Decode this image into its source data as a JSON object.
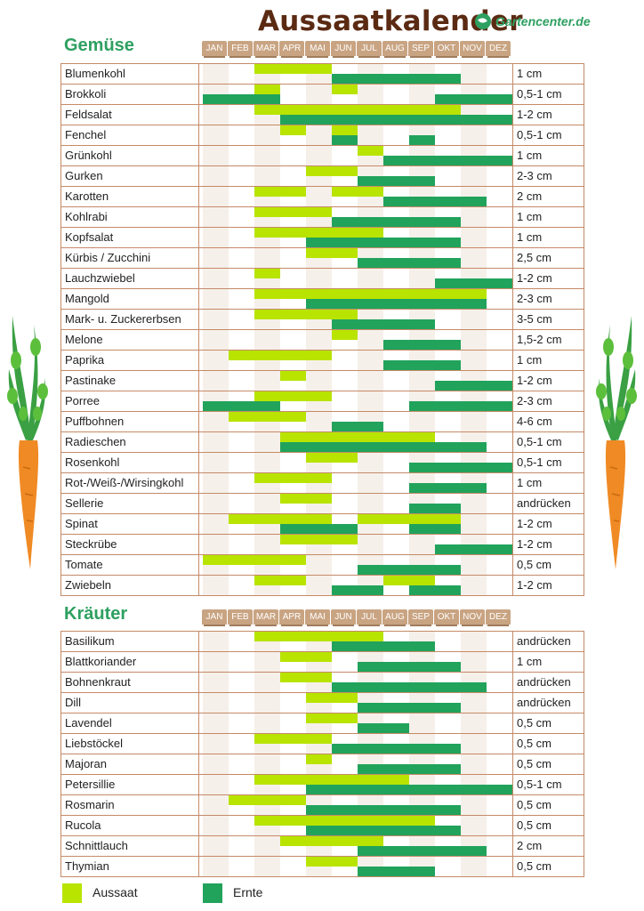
{
  "title": "Aussaatkalender",
  "brand": "Gartencenter.de",
  "months": [
    "JAN",
    "FEB",
    "MAR",
    "APR",
    "MAI",
    "JUN",
    "JUL",
    "AUG",
    "SEP",
    "OKT",
    "NOV",
    "DEZ"
  ],
  "colors": {
    "sow": "#b8e400",
    "harvest": "#21a35c",
    "heading": "#2ea061",
    "title": "#5b2a12"
  },
  "sections": [
    {
      "title": "Gemüse",
      "rows": [
        {
          "name": "Blumenkohl",
          "depth": "1 cm",
          "sow": [
            [
              3,
              5
            ]
          ],
          "harvest": [
            [
              6,
              10
            ]
          ]
        },
        {
          "name": "Brokkoli",
          "depth": "0,5-1 cm",
          "sow": [
            [
              3,
              3
            ],
            [
              6,
              6
            ]
          ],
          "harvest": [
            [
              1,
              3
            ],
            [
              10,
              12
            ]
          ]
        },
        {
          "name": "Feldsalat",
          "depth": "1-2 cm",
          "sow": [
            [
              3,
              10
            ]
          ],
          "harvest": [
            [
              4,
              12
            ]
          ]
        },
        {
          "name": "Fenchel",
          "depth": "0,5-1 cm",
          "sow": [
            [
              4,
              4
            ],
            [
              6,
              6
            ]
          ],
          "harvest": [
            [
              6,
              6
            ],
            [
              9,
              9
            ]
          ]
        },
        {
          "name": "Grünkohl",
          "depth": "1 cm",
          "sow": [
            [
              7,
              7
            ]
          ],
          "harvest": [
            [
              8,
              12
            ]
          ]
        },
        {
          "name": "Gurken",
          "depth": "2-3 cm",
          "sow": [
            [
              5,
              6
            ]
          ],
          "harvest": [
            [
              7,
              9
            ]
          ]
        },
        {
          "name": "Karotten",
          "depth": "2 cm",
          "sow": [
            [
              3,
              4
            ],
            [
              6,
              7
            ]
          ],
          "harvest": [
            [
              8,
              11
            ]
          ]
        },
        {
          "name": "Kohlrabi",
          "depth": "1 cm",
          "sow": [
            [
              3,
              5
            ]
          ],
          "harvest": [
            [
              6,
              10
            ]
          ]
        },
        {
          "name": "Kopfsalat",
          "depth": "1 cm",
          "sow": [
            [
              3,
              7
            ]
          ],
          "harvest": [
            [
              5,
              10
            ]
          ]
        },
        {
          "name": "Kürbis / Zucchini",
          "depth": "2,5 cm",
          "sow": [
            [
              5,
              6
            ]
          ],
          "harvest": [
            [
              7,
              10
            ]
          ]
        },
        {
          "name": "Lauchzwiebel",
          "depth": "1-2 cm",
          "sow": [
            [
              3,
              3
            ]
          ],
          "harvest": [
            [
              10,
              12
            ]
          ]
        },
        {
          "name": "Mangold",
          "depth": "2-3 cm",
          "sow": [
            [
              3,
              11
            ]
          ],
          "harvest": [
            [
              5,
              11
            ]
          ]
        },
        {
          "name": "Mark- u. Zuckererbsen",
          "depth": "3-5 cm",
          "sow": [
            [
              3,
              6
            ]
          ],
          "harvest": [
            [
              6,
              9
            ]
          ]
        },
        {
          "name": "Melone",
          "depth": "1,5-2 cm",
          "sow": [
            [
              6,
              6
            ]
          ],
          "harvest": [
            [
              8,
              10
            ]
          ]
        },
        {
          "name": "Paprika",
          "depth": "1 cm",
          "sow": [
            [
              2,
              5
            ]
          ],
          "harvest": [
            [
              8,
              10
            ]
          ]
        },
        {
          "name": "Pastinake",
          "depth": "1-2 cm",
          "sow": [
            [
              4,
              4
            ]
          ],
          "harvest": [
            [
              10,
              12
            ]
          ]
        },
        {
          "name": "Porree",
          "depth": "2-3 cm",
          "sow": [
            [
              3,
              5
            ]
          ],
          "harvest": [
            [
              1,
              3
            ],
            [
              9,
              12
            ]
          ]
        },
        {
          "name": "Puffbohnen",
          "depth": "4-6 cm",
          "sow": [
            [
              2,
              4
            ]
          ],
          "harvest": [
            [
              6,
              7
            ]
          ]
        },
        {
          "name": "Radieschen",
          "depth": "0,5-1 cm",
          "sow": [
            [
              4,
              9
            ]
          ],
          "harvest": [
            [
              4,
              11
            ]
          ]
        },
        {
          "name": "Rosenkohl",
          "depth": "0,5-1 cm",
          "sow": [
            [
              5,
              6
            ]
          ],
          "harvest": [
            [
              9,
              12
            ]
          ]
        },
        {
          "name": "Rot-/Weiß-/Wirsingkohl",
          "depth": "1 cm",
          "sow": [
            [
              3,
              5
            ]
          ],
          "harvest": [
            [
              9,
              11
            ]
          ]
        },
        {
          "name": "Sellerie",
          "depth": "andrücken",
          "sow": [
            [
              4,
              5
            ]
          ],
          "harvest": [
            [
              9,
              10
            ]
          ]
        },
        {
          "name": "Spinat",
          "depth": "1-2 cm",
          "sow": [
            [
              2,
              5
            ],
            [
              7,
              10
            ]
          ],
          "harvest": [
            [
              4,
              6
            ],
            [
              9,
              10
            ]
          ]
        },
        {
          "name": "Steckrübe",
          "depth": "1-2 cm",
          "sow": [
            [
              4,
              6
            ]
          ],
          "harvest": [
            [
              10,
              12
            ]
          ]
        },
        {
          "name": "Tomate",
          "depth": "0,5 cm",
          "sow": [
            [
              1,
              4
            ]
          ],
          "harvest": [
            [
              7,
              10
            ]
          ]
        },
        {
          "name": "Zwiebeln",
          "depth": "1-2 cm",
          "sow": [
            [
              3,
              4
            ],
            [
              8,
              9
            ]
          ],
          "harvest": [
            [
              6,
              7
            ],
            [
              9,
              10
            ]
          ]
        }
      ]
    },
    {
      "title": "Kräuter",
      "rows": [
        {
          "name": "Basilikum",
          "depth": "andrücken",
          "sow": [
            [
              3,
              7
            ]
          ],
          "harvest": [
            [
              6,
              9
            ]
          ]
        },
        {
          "name": "Blattkoriander",
          "depth": "1 cm",
          "sow": [
            [
              4,
              5
            ]
          ],
          "harvest": [
            [
              7,
              10
            ]
          ]
        },
        {
          "name": "Bohnenkraut",
          "depth": "andrücken",
          "sow": [
            [
              4,
              5
            ]
          ],
          "harvest": [
            [
              6,
              11
            ]
          ]
        },
        {
          "name": "Dill",
          "depth": "andrücken",
          "sow": [
            [
              5,
              6
            ]
          ],
          "harvest": [
            [
              7,
              10
            ]
          ]
        },
        {
          "name": "Lavendel",
          "depth": "0,5 cm",
          "sow": [
            [
              5,
              6
            ]
          ],
          "harvest": [
            [
              7,
              8
            ]
          ]
        },
        {
          "name": "Liebstöckel",
          "depth": "0,5 cm",
          "sow": [
            [
              3,
              5
            ]
          ],
          "harvest": [
            [
              6,
              10
            ]
          ]
        },
        {
          "name": "Majoran",
          "depth": "0,5 cm",
          "sow": [
            [
              5,
              5
            ]
          ],
          "harvest": [
            [
              7,
              10
            ]
          ]
        },
        {
          "name": "Petersillie",
          "depth": "0,5-1 cm",
          "sow": [
            [
              3,
              8
            ]
          ],
          "harvest": [
            [
              5,
              12
            ]
          ]
        },
        {
          "name": "Rosmarin",
          "depth": "0,5 cm",
          "sow": [
            [
              2,
              4
            ]
          ],
          "harvest": [
            [
              5,
              10
            ]
          ]
        },
        {
          "name": "Rucola",
          "depth": "0,5 cm",
          "sow": [
            [
              3,
              9
            ]
          ],
          "harvest": [
            [
              5,
              10
            ]
          ]
        },
        {
          "name": "Schnittlauch",
          "depth": "2 cm",
          "sow": [
            [
              4,
              7
            ]
          ],
          "harvest": [
            [
              7,
              11
            ]
          ]
        },
        {
          "name": "Thymian",
          "depth": "0,5 cm",
          "sow": [
            [
              5,
              6
            ]
          ],
          "harvest": [
            [
              7,
              9
            ]
          ]
        }
      ]
    }
  ],
  "legend": {
    "sow": "Aussaat",
    "harvest": "Ernte"
  }
}
